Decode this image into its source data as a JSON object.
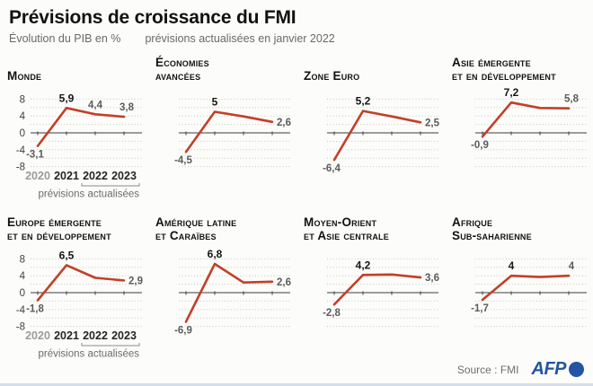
{
  "header": {
    "title": "Prévisions de croissance du FMI",
    "subtitle_left": "Évolution du PIB en %",
    "subtitle_right": "prévisions actualisées en janvier 2022"
  },
  "axis": {
    "y_ticks": [
      8,
      4,
      0,
      -4,
      -8
    ],
    "y_range": [
      -8,
      8
    ],
    "grid_step": 2,
    "years": [
      "2020",
      "2021",
      "2022",
      "2023"
    ],
    "forecast_years": [
      "2022",
      "2023"
    ],
    "forecast_note": "prévisions actualisées"
  },
  "colors": {
    "line": "#c24028",
    "grid": "#c6c6c0",
    "zero_axis": "#3d3d3d",
    "label_gray": "#5c5c5c",
    "label_black": "#161616",
    "year_gray": "#9b9b9b",
    "year_dark": "#262626",
    "note_gray": "#6b6b6b",
    "afp_blue": "#2455a4"
  },
  "chart_data": [
    {
      "type": "line",
      "title_lines": [
        "Monde"
      ],
      "x": [
        "2020",
        "2021",
        "2022",
        "2023"
      ],
      "values": [
        -3.1,
        5.9,
        4.4,
        3.8
      ],
      "labels": [
        "-3,1",
        "5,9",
        "4,4",
        "3,8"
      ],
      "show_axis_labels": true
    },
    {
      "type": "line",
      "title_lines": [
        "Économies",
        "avancées"
      ],
      "x": [
        "2020",
        "2021",
        "2022",
        "2023"
      ],
      "values": [
        -4.5,
        5.0,
        3.9,
        2.6
      ],
      "labels": [
        "-4,5",
        "5",
        "",
        "2,6"
      ],
      "show_axis_labels": false
    },
    {
      "type": "line",
      "title_lines": [
        "Zone Euro"
      ],
      "x": [
        "2020",
        "2021",
        "2022",
        "2023"
      ],
      "values": [
        -6.4,
        5.2,
        3.9,
        2.5
      ],
      "labels": [
        "-6,4",
        "5,2",
        "",
        "2,5"
      ],
      "show_axis_labels": false
    },
    {
      "type": "line",
      "title_lines": [
        "Asie émergente",
        "et en développement"
      ],
      "x": [
        "2020",
        "2021",
        "2022",
        "2023"
      ],
      "values": [
        -0.9,
        7.2,
        5.9,
        5.8
      ],
      "labels": [
        "-0,9",
        "7,2",
        "",
        "5,8"
      ],
      "show_axis_labels": false
    },
    {
      "type": "line",
      "title_lines": [
        "Europe émergente",
        "et en développement"
      ],
      "x": [
        "2020",
        "2021",
        "2022",
        "2023"
      ],
      "values": [
        -1.8,
        6.5,
        3.5,
        2.9
      ],
      "labels": [
        "-1,8",
        "6,5",
        "",
        "2,9"
      ],
      "show_axis_labels": true
    },
    {
      "type": "line",
      "title_lines": [
        "Amérique latine",
        "et Caraïbes"
      ],
      "x": [
        "2020",
        "2021",
        "2022",
        "2023"
      ],
      "values": [
        -6.9,
        6.8,
        2.4,
        2.6
      ],
      "labels": [
        "-6,9",
        "6,8",
        "",
        "2,6"
      ],
      "show_axis_labels": false
    },
    {
      "type": "line",
      "title_lines": [
        "Moyen-Orient",
        "et Asie centrale"
      ],
      "x": [
        "2020",
        "2021",
        "2022",
        "2023"
      ],
      "values": [
        -2.8,
        4.2,
        4.3,
        3.6
      ],
      "labels": [
        "-2,8",
        "4,2",
        "",
        "3,6"
      ],
      "show_axis_labels": false
    },
    {
      "type": "line",
      "title_lines": [
        "Afrique",
        "Sub-saharienne"
      ],
      "x": [
        "2020",
        "2021",
        "2022",
        "2023"
      ],
      "values": [
        -1.7,
        4.0,
        3.7,
        4.0
      ],
      "labels": [
        "-1,7",
        "4",
        "",
        "4"
      ],
      "show_axis_labels": false
    }
  ],
  "footer": {
    "source": "Source : FMI",
    "brand": "AFP"
  }
}
